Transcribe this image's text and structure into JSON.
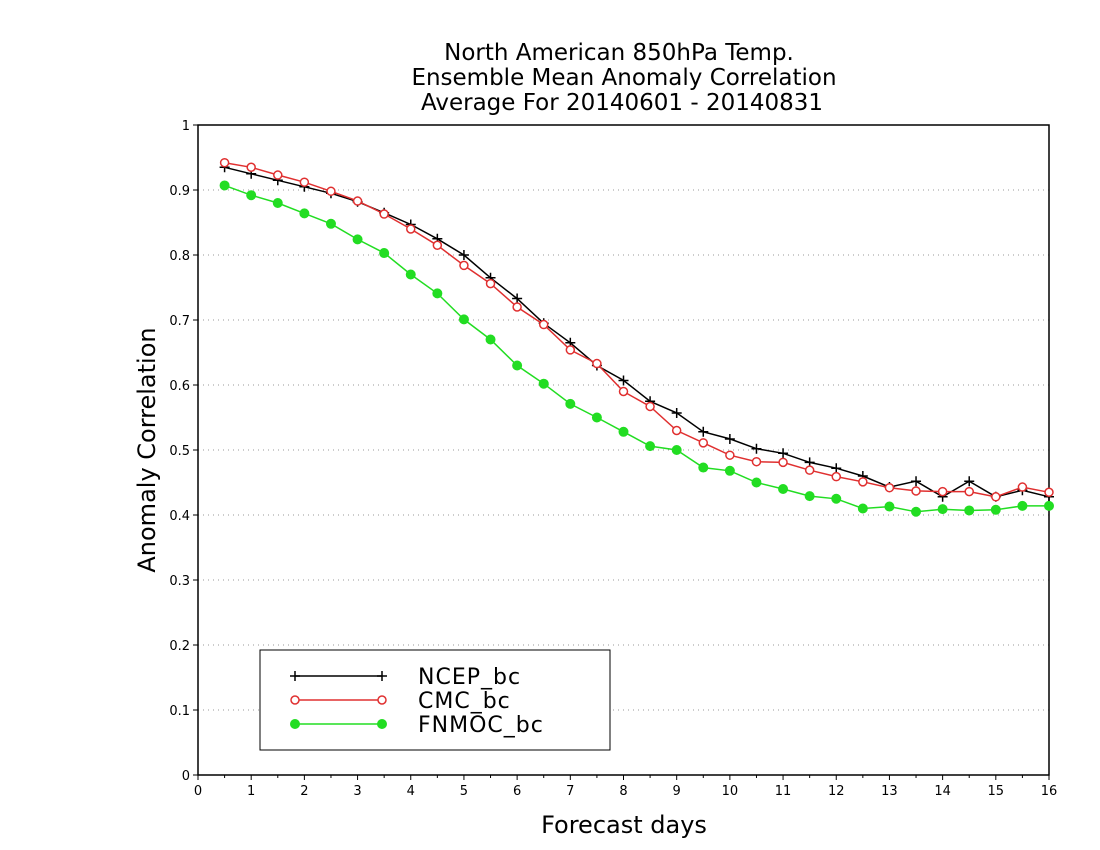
{
  "title_lines": [
    "North American 850hPa Temp.",
    "Ensemble Mean Anomaly Correlation",
    "Average For 20140601 - 20140831"
  ],
  "colors": {
    "NCEP_bc": "#000000",
    "CMC_bc": "#e03030",
    "FNMOC_bc": "#22dd22",
    "grid": "#999999"
  },
  "chart_data": {
    "type": "line",
    "title": "North American 850hPa Temp. Ensemble Mean Anomaly Correlation Average For 20140601 - 20140831",
    "xlabel": "Forecast days",
    "ylabel": "Anomaly Correlation",
    "xlim": [
      0,
      16
    ],
    "ylim": [
      0,
      1
    ],
    "xticks": [
      "0",
      "1",
      "2",
      "3",
      "4",
      "5",
      "6",
      "7",
      "8",
      "9",
      "10",
      "11",
      "12",
      "13",
      "14",
      "15",
      "16"
    ],
    "yticks": [
      "0",
      "0.1",
      "0.2",
      "0.3",
      "0.4",
      "0.5",
      "0.6",
      "0.7",
      "0.8",
      "0.9",
      "1"
    ],
    "grid": "horizontal dotted",
    "legend_position": "bottom-left",
    "x": [
      0.5,
      1,
      1.5,
      2,
      2.5,
      3,
      3.5,
      4,
      4.5,
      5,
      5.5,
      6,
      6.5,
      7,
      7.5,
      8,
      8.5,
      9,
      9.5,
      10,
      10.5,
      11,
      11.5,
      12,
      12.5,
      13,
      13.5,
      14,
      14.5,
      15,
      15.5,
      16
    ],
    "series": [
      {
        "name": "NCEP_bc",
        "marker": "plus",
        "values": [
          0.935,
          0.925,
          0.915,
          0.905,
          0.895,
          0.882,
          0.865,
          0.847,
          0.825,
          0.8,
          0.765,
          0.733,
          0.695,
          0.665,
          0.63,
          0.607,
          0.575,
          0.557,
          0.528,
          0.517,
          0.502,
          0.495,
          0.481,
          0.472,
          0.46,
          0.443,
          0.452,
          0.428,
          0.452,
          0.428,
          0.438,
          0.428
        ]
      },
      {
        "name": "CMC_bc",
        "marker": "open-circle",
        "values": [
          0.942,
          0.935,
          0.923,
          0.912,
          0.898,
          0.883,
          0.863,
          0.84,
          0.815,
          0.784,
          0.756,
          0.72,
          0.693,
          0.654,
          0.633,
          0.59,
          0.567,
          0.53,
          0.511,
          0.492,
          0.482,
          0.481,
          0.469,
          0.459,
          0.451,
          0.442,
          0.437,
          0.436,
          0.436,
          0.428,
          0.443,
          0.435
        ]
      },
      {
        "name": "FNMOC_bc",
        "marker": "filled-circle",
        "values": [
          0.907,
          0.892,
          0.88,
          0.864,
          0.848,
          0.824,
          0.803,
          0.77,
          0.741,
          0.701,
          0.67,
          0.63,
          0.602,
          0.571,
          0.55,
          0.528,
          0.506,
          0.5,
          0.473,
          0.468,
          0.45,
          0.44,
          0.429,
          0.425,
          0.41,
          0.413,
          0.405,
          0.409,
          0.407,
          0.408,
          0.414,
          0.414
        ]
      }
    ]
  }
}
